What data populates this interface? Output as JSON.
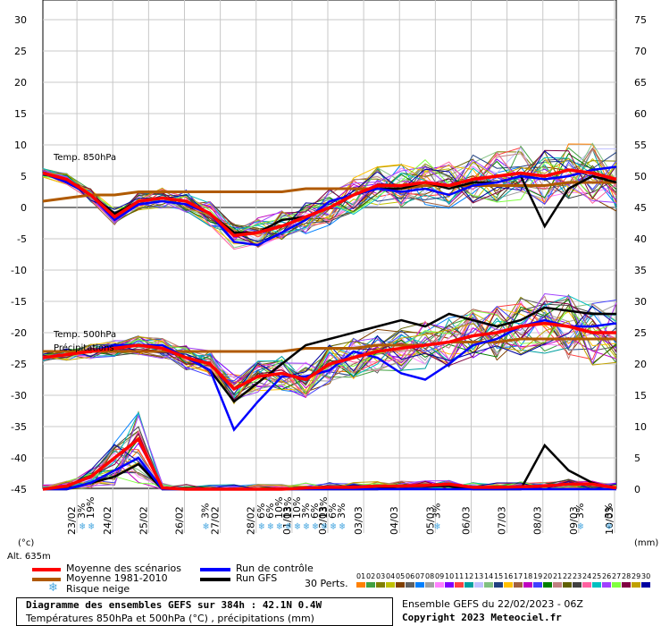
{
  "chart_data": {
    "type": "line",
    "title": "Diagramme des ensembles GEFS sur 384h : 42.1N 0.4W",
    "subtitle": "Températures 850hPa et 500hPa (°C) , précipitations (mm)",
    "run_info": "Ensemble GEFS du 22/02/2023 - 06Z",
    "copyright": "Copyright 2023 Meteociel.fr",
    "altitude": "Alt. 635m",
    "left_unit": "(°c)",
    "right_unit": "(mm)",
    "y_left_ticks": [
      "30",
      "25",
      "20",
      "15",
      "10",
      "5",
      "0",
      "-5",
      "-10",
      "-15",
      "-20",
      "-25",
      "-30",
      "-35",
      "-40",
      "-45"
    ],
    "y_right_ticks": [
      "75",
      "70",
      "65",
      "60",
      "55",
      "50",
      "45",
      "40",
      "35",
      "30",
      "25",
      "20",
      "15",
      "10",
      "5",
      "0"
    ],
    "x_ticks": [
      "23/02",
      "24/02",
      "25/02",
      "26/02",
      "27/02",
      "28/02",
      "01/03",
      "02/03",
      "03/03",
      "04/03",
      "05/03",
      "06/03",
      "07/03",
      "08/03",
      "09/03",
      "10/03"
    ],
    "panel_labels": {
      "t850": "Temp. 850hPa",
      "t500": "Temp. 500hPa",
      "precip": "Précipitations"
    },
    "x_range_days": [
      0,
      16
    ],
    "series": [
      {
        "name": "Moyenne des scénarios",
        "color": "#ff0000",
        "t850": [
          5.5,
          4.5,
          2,
          -1.5,
          1,
          1.5,
          1,
          -1,
          -4.5,
          -4,
          -3,
          -1.5,
          0,
          2,
          3.5,
          3.5,
          4,
          3.5,
          4.5,
          5,
          5.5,
          5,
          6,
          5.5,
          4.5
        ],
        "t500": [
          -24,
          -23.5,
          -23,
          -22.5,
          -22,
          -22.5,
          -24,
          -25,
          -29,
          -27,
          -26.5,
          -27.5,
          -25,
          -24,
          -23,
          -22.5,
          -22,
          -21.5,
          -20.5,
          -20,
          -19,
          -18.5,
          -19,
          -20,
          -20
        ],
        "precip": [
          0,
          0.5,
          2,
          5,
          8,
          0.2,
          0,
          0,
          0,
          0,
          0,
          0.2,
          0.3,
          0.3,
          0.5,
          0.5,
          0.6,
          0.8,
          0.3,
          0.3,
          0.4,
          0.5,
          0.8,
          0.8,
          0.2
        ]
      },
      {
        "name": "Moyenne 1981-2010",
        "color": "#b05a00",
        "t850": [
          1,
          1.5,
          2,
          2,
          2.5,
          2.5,
          2.5,
          2.5,
          2.5,
          2.5,
          2.5,
          3,
          3,
          3,
          3,
          3,
          3.5,
          3.5,
          3.5,
          3.5,
          3.5,
          3.5,
          4,
          4,
          4
        ],
        "t500": [
          -23,
          -23,
          -23,
          -23,
          -23,
          -23,
          -23,
          -23,
          -23,
          -23,
          -23,
          -22.5,
          -22.5,
          -22.5,
          -22,
          -22,
          -22,
          -21.5,
          -21.5,
          -21.5,
          -21,
          -21,
          -21,
          -21,
          -21
        ]
      },
      {
        "name": "Run de contrôle",
        "color": "#0000ff",
        "t850": [
          5.5,
          4,
          2,
          -2,
          0.5,
          1,
          0.5,
          -1,
          -5.5,
          -6,
          -4,
          -2,
          1,
          2,
          3,
          2.5,
          3,
          2,
          3.5,
          4,
          5,
          4.5,
          5,
          6,
          6.5
        ],
        "t500": [
          -24,
          -23.5,
          -23,
          -22,
          -22,
          -22,
          -24,
          -26,
          -35.5,
          -31,
          -27,
          -27,
          -26,
          -23,
          -24,
          -26.5,
          -27.5,
          -25,
          -22,
          -21,
          -19,
          -18,
          -19,
          -19,
          -18.5
        ],
        "precip": [
          0,
          0,
          1,
          3,
          5,
          0,
          0,
          0,
          0,
          0,
          0,
          0,
          0,
          0,
          0,
          0,
          0,
          0,
          0,
          0,
          0,
          0,
          0,
          0,
          0
        ]
      },
      {
        "name": "Run GFS",
        "color": "#000000",
        "t850": [
          5.5,
          4,
          2,
          -1,
          1,
          1.5,
          1,
          -1,
          -4,
          -4,
          -2,
          -1.5,
          0,
          2,
          3,
          3,
          4,
          3,
          4,
          4,
          5,
          -3,
          3,
          5,
          4
        ],
        "t500": [
          -24,
          -23.5,
          -23,
          -22,
          -22,
          -22.5,
          -24,
          -26,
          -31,
          -28,
          -25,
          -22,
          -21,
          -20,
          -19,
          -18,
          -19,
          -17,
          -18,
          -19,
          -18,
          -16,
          -16.5,
          -17,
          -17
        ],
        "precip": [
          0,
          0,
          1,
          2,
          4,
          0,
          0,
          0,
          0,
          0,
          0,
          0,
          0,
          0,
          0,
          0.5,
          0.5,
          0.5,
          0,
          0,
          0,
          7,
          3,
          1,
          0
        ]
      }
    ],
    "snow_risk": [
      {
        "day": 1.1,
        "label": "3%"
      },
      {
        "day": 1.35,
        "label": "19%"
      },
      {
        "day": 4.55,
        "label": "3%"
      },
      {
        "day": 6.1,
        "label": "6%"
      },
      {
        "day": 6.35,
        "label": "6%"
      },
      {
        "day": 6.6,
        "label": "10%"
      },
      {
        "day": 6.85,
        "label": "13%"
      },
      {
        "day": 7.1,
        "label": "10%"
      },
      {
        "day": 7.35,
        "label": "3%"
      },
      {
        "day": 7.6,
        "label": "6%"
      },
      {
        "day": 7.85,
        "label": "13%"
      },
      {
        "day": 8.1,
        "label": "6%"
      },
      {
        "day": 8.35,
        "label": "3%"
      },
      {
        "day": 11.0,
        "label": "3%"
      },
      {
        "day": 15.0,
        "label": "3%"
      },
      {
        "day": 15.8,
        "label": "3%"
      }
    ],
    "grid": true
  },
  "legend": {
    "mean_label": "Moyenne des scénarios",
    "climo_label": "Moyenne 1981-2010",
    "snow_label": "Risque neige",
    "control_label": "Run de contrôle",
    "gfs_label": "Run GFS",
    "perts_label": "30 Perts.",
    "perts": [
      "01",
      "02",
      "03",
      "04",
      "05",
      "06",
      "07",
      "08",
      "09",
      "10",
      "11",
      "12",
      "13",
      "14",
      "15",
      "16",
      "17",
      "18",
      "19",
      "20",
      "21",
      "22",
      "23",
      "24",
      "25",
      "26",
      "27",
      "28",
      "29",
      "30"
    ],
    "pert_colors": [
      "#ff8000",
      "#40a040",
      "#808000",
      "#c0c000",
      "#804000",
      "#606060",
      "#0080ff",
      "#a0a0a0",
      "#ff80ff",
      "#8000ff",
      "#ff4040",
      "#00a0a0",
      "#c0c0ff",
      "#80c080",
      "#204080",
      "#ffc000",
      "#a06040",
      "#c000c0",
      "#4040ff",
      "#008000",
      "#c08080",
      "#606000",
      "#404040",
      "#ff60a0",
      "#00c0c0",
      "#a040ff",
      "#80ff40",
      "#800040",
      "#c0a000",
      "#0000a0"
    ]
  }
}
